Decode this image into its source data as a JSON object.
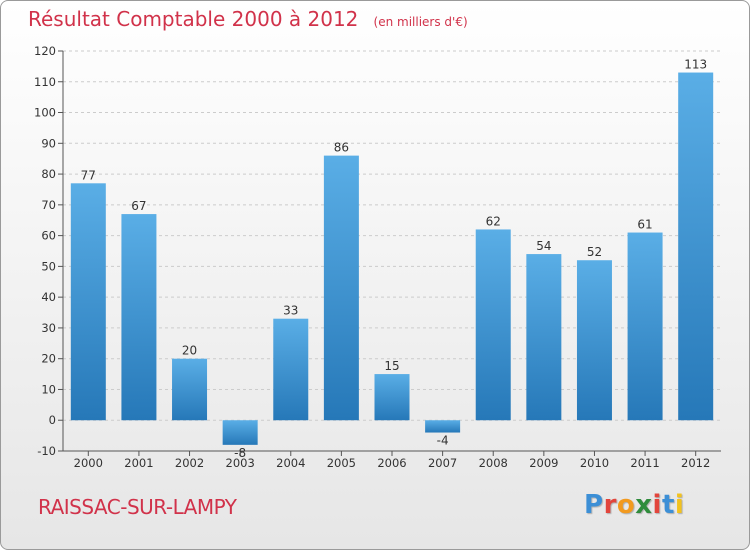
{
  "header": {
    "title": "Résultat Comptable 2000 à 2012",
    "subtitle": "(en milliers d'€)"
  },
  "footer": {
    "commune": "RAISSAC-SUR-LAMPY",
    "logo_letters": [
      "P",
      "r",
      "o",
      "x",
      "i",
      "t",
      "i"
    ],
    "logo_colors": [
      "#3c8fd6",
      "#e2453c",
      "#f29a1f",
      "#2f8c3c",
      "#e2453c",
      "#3c8fd6",
      "#f2c21f"
    ]
  },
  "colors": {
    "bar_top": "#5aaee6",
    "bar_bottom": "#2678b8",
    "title": "#d1324a",
    "grid": "#cccccc"
  },
  "chart_data": {
    "type": "bar",
    "title": "Résultat Comptable 2000 à 2012",
    "subtitle": "(en milliers d'€)",
    "xlabel": "",
    "ylabel": "",
    "ylim": [
      -10,
      120
    ],
    "yticks": [
      -10,
      0,
      10,
      20,
      30,
      40,
      50,
      60,
      70,
      80,
      90,
      100,
      110,
      120
    ],
    "grid": true,
    "categories": [
      "2000",
      "2001",
      "2002",
      "2003",
      "2004",
      "2005",
      "2006",
      "2007",
      "2008",
      "2009",
      "2010",
      "2011",
      "2012"
    ],
    "values": [
      77,
      67,
      20,
      -8,
      33,
      86,
      15,
      -4,
      62,
      54,
      52,
      61,
      113
    ]
  }
}
